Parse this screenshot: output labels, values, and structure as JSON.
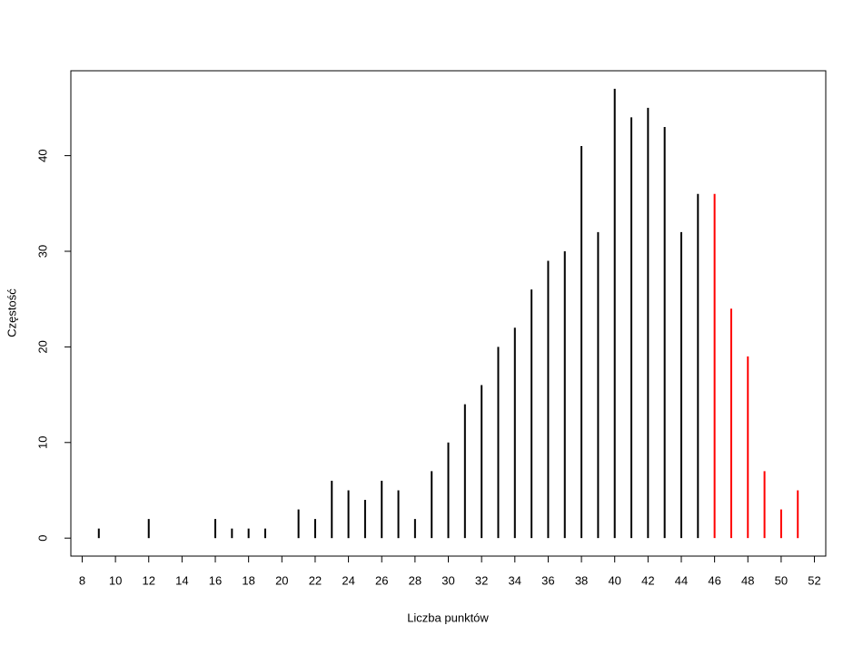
{
  "chart_data": {
    "type": "spike",
    "x_label": "Liczba punktów",
    "y_label": "Częstość",
    "x": [
      9,
      12,
      16,
      17,
      18,
      19,
      21,
      22,
      23,
      24,
      25,
      26,
      27,
      28,
      29,
      30,
      31,
      32,
      33,
      34,
      35,
      36,
      37,
      38,
      39,
      40,
      41,
      42,
      43,
      44,
      45,
      46,
      47,
      48,
      49,
      50,
      51
    ],
    "values": [
      1,
      2,
      2,
      1,
      1,
      1,
      3,
      2,
      6,
      5,
      4,
      6,
      5,
      2,
      7,
      10,
      14,
      16,
      20,
      22,
      26,
      29,
      30,
      41,
      32,
      47,
      44,
      45,
      43,
      32,
      36,
      36,
      24,
      19,
      7,
      3,
      5
    ],
    "colors": [
      "#000000",
      "#000000",
      "#000000",
      "#000000",
      "#000000",
      "#000000",
      "#000000",
      "#000000",
      "#000000",
      "#000000",
      "#000000",
      "#000000",
      "#000000",
      "#000000",
      "#000000",
      "#000000",
      "#000000",
      "#000000",
      "#000000",
      "#000000",
      "#000000",
      "#000000",
      "#000000",
      "#000000",
      "#000000",
      "#000000",
      "#000000",
      "#000000",
      "#000000",
      "#000000",
      "#000000",
      "#ff0000",
      "#ff0000",
      "#ff0000",
      "#ff0000",
      "#ff0000",
      "#ff0000"
    ],
    "xlim": [
      7.32,
      52.68
    ],
    "ylim": [
      -1.88,
      48.88
    ],
    "xticks": [
      8,
      10,
      12,
      14,
      16,
      18,
      20,
      22,
      24,
      26,
      28,
      30,
      32,
      34,
      36,
      38,
      40,
      42,
      44,
      46,
      48,
      50,
      52
    ],
    "yticks": [
      0,
      10,
      20,
      30,
      40
    ]
  }
}
